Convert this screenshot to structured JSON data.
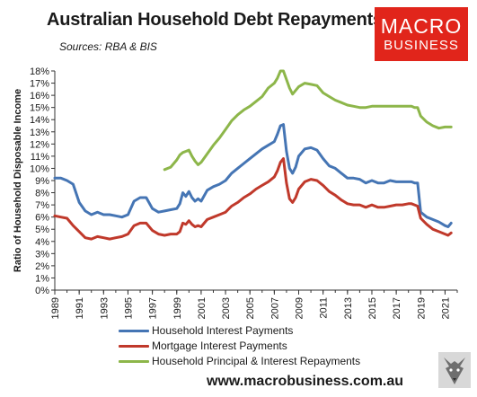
{
  "title": "Australian Household Debt Repayments",
  "subtitle": "Sources: RBA & BIS",
  "logo": {
    "line1": "MACRO",
    "line2": "BUSINESS"
  },
  "footer": {
    "website": "www.macrobusiness.com.au"
  },
  "colors": {
    "household_interest": "#4575b4",
    "mortgage_interest": "#c0392b",
    "principal_interest": "#8db64a",
    "logo_bg": "#e1251b"
  },
  "icons": {
    "logo_mark": "wolf-icon"
  },
  "chart_data": {
    "type": "line",
    "title": "Australian Household Debt Repayments",
    "ylabel": "Ratio of Household Disposable Income",
    "xlabel": "",
    "xlim": [
      1989,
      2022
    ],
    "ylim": [
      0,
      18
    ],
    "grid": false,
    "legend_position": "bottom",
    "x_ticks": [
      "1989",
      "1991",
      "1993",
      "1995",
      "1997",
      "1999",
      "2001",
      "2003",
      "2005",
      "2007",
      "2009",
      "2011",
      "2013",
      "2015",
      "2017",
      "2019",
      "2021"
    ],
    "y_ticks": [
      "0%",
      "1%",
      "2%",
      "3%",
      "4%",
      "5%",
      "6%",
      "7%",
      "8%",
      "9%",
      "10%",
      "11%",
      "12%",
      "13%",
      "14%",
      "15%",
      "16%",
      "17%",
      "18%"
    ],
    "series": [
      {
        "name": "Household Interest Payments",
        "color": "#4575b4",
        "x": [
          1989.0,
          1989.5,
          1990.0,
          1990.5,
          1991.0,
          1991.5,
          1992.0,
          1992.5,
          1993.0,
          1993.5,
          1994.0,
          1994.5,
          1995.0,
          1995.5,
          1996.0,
          1996.5,
          1997.0,
          1997.5,
          1998.0,
          1998.5,
          1999.0,
          1999.25,
          1999.5,
          1999.75,
          2000.0,
          2000.25,
          2000.5,
          2000.75,
          2001.0,
          2001.5,
          2002.0,
          2002.5,
          2003.0,
          2003.5,
          2004.0,
          2004.5,
          2005.0,
          2005.5,
          2006.0,
          2006.5,
          2007.0,
          2007.25,
          2007.5,
          2007.75,
          2008.0,
          2008.25,
          2008.5,
          2008.75,
          2009.0,
          2009.5,
          2010.0,
          2010.5,
          2011.0,
          2011.5,
          2012.0,
          2012.5,
          2013.0,
          2013.5,
          2014.0,
          2014.5,
          2015.0,
          2015.5,
          2016.0,
          2016.5,
          2017.0,
          2017.5,
          2018.0,
          2018.25,
          2018.5,
          2018.75,
          2019.0,
          2019.5,
          2020.0,
          2020.5,
          2021.0,
          2021.25,
          2021.5
        ],
        "values": [
          9.2,
          9.2,
          9.0,
          8.7,
          7.2,
          6.5,
          6.2,
          6.4,
          6.2,
          6.2,
          6.1,
          6.0,
          6.2,
          7.3,
          7.6,
          7.6,
          6.7,
          6.4,
          6.5,
          6.6,
          6.7,
          7.1,
          8.0,
          7.7,
          8.1,
          7.6,
          7.3,
          7.5,
          7.3,
          8.2,
          8.5,
          8.7,
          9.0,
          9.6,
          10.0,
          10.4,
          10.8,
          11.2,
          11.6,
          11.9,
          12.2,
          12.8,
          13.5,
          13.6,
          11.4,
          10.0,
          9.6,
          10.1,
          11.0,
          11.6,
          11.7,
          11.5,
          10.8,
          10.2,
          10.0,
          9.6,
          9.2,
          9.2,
          9.1,
          8.8,
          9.0,
          8.8,
          8.8,
          9.0,
          8.9,
          8.9,
          8.9,
          8.9,
          8.8,
          8.8,
          6.4,
          6.0,
          5.8,
          5.6,
          5.3,
          5.2,
          5.5
        ]
      },
      {
        "name": "Mortgage Interest Payments",
        "color": "#c0392b",
        "x": [
          1989.0,
          1989.5,
          1990.0,
          1990.5,
          1991.0,
          1991.5,
          1992.0,
          1992.5,
          1993.0,
          1993.5,
          1994.0,
          1994.5,
          1995.0,
          1995.5,
          1996.0,
          1996.5,
          1997.0,
          1997.5,
          1998.0,
          1998.5,
          1999.0,
          1999.25,
          1999.5,
          1999.75,
          2000.0,
          2000.25,
          2000.5,
          2000.75,
          2001.0,
          2001.5,
          2002.0,
          2002.5,
          2003.0,
          2003.5,
          2004.0,
          2004.5,
          2005.0,
          2005.5,
          2006.0,
          2006.5,
          2007.0,
          2007.25,
          2007.5,
          2007.75,
          2008.0,
          2008.25,
          2008.5,
          2008.75,
          2009.0,
          2009.5,
          2010.0,
          2010.5,
          2011.0,
          2011.5,
          2012.0,
          2012.5,
          2013.0,
          2013.5,
          2014.0,
          2014.5,
          2015.0,
          2015.5,
          2016.0,
          2016.5,
          2017.0,
          2017.5,
          2018.0,
          2018.25,
          2018.5,
          2018.75,
          2019.0,
          2019.5,
          2020.0,
          2020.5,
          2021.0,
          2021.25,
          2021.5
        ],
        "values": [
          6.1,
          6.0,
          5.9,
          5.3,
          4.8,
          4.3,
          4.2,
          4.4,
          4.3,
          4.2,
          4.3,
          4.4,
          4.6,
          5.3,
          5.5,
          5.5,
          4.9,
          4.6,
          4.5,
          4.6,
          4.6,
          4.8,
          5.5,
          5.4,
          5.7,
          5.4,
          5.2,
          5.3,
          5.2,
          5.8,
          6.0,
          6.2,
          6.4,
          6.9,
          7.2,
          7.6,
          7.9,
          8.3,
          8.6,
          8.9,
          9.3,
          9.8,
          10.5,
          10.8,
          8.8,
          7.5,
          7.2,
          7.6,
          8.3,
          8.9,
          9.1,
          9.0,
          8.6,
          8.1,
          7.8,
          7.4,
          7.1,
          7.0,
          7.0,
          6.8,
          7.0,
          6.8,
          6.8,
          6.9,
          7.0,
          7.0,
          7.1,
          7.1,
          7.0,
          6.9,
          5.9,
          5.4,
          5.0,
          4.8,
          4.6,
          4.5,
          4.7
        ]
      },
      {
        "name": "Household Principal & Interest Repayments",
        "color": "#8db64a",
        "x": [
          1998.0,
          1998.5,
          1999.0,
          1999.25,
          1999.5,
          1999.75,
          2000.0,
          2000.25,
          2000.5,
          2000.75,
          2001.0,
          2001.5,
          2002.0,
          2002.5,
          2003.0,
          2003.5,
          2004.0,
          2004.5,
          2005.0,
          2005.5,
          2006.0,
          2006.5,
          2007.0,
          2007.25,
          2007.5,
          2007.75,
          2008.0,
          2008.25,
          2008.5,
          2008.75,
          2009.0,
          2009.5,
          2010.0,
          2010.5,
          2011.0,
          2011.5,
          2012.0,
          2012.5,
          2013.0,
          2013.5,
          2014.0,
          2014.5,
          2015.0,
          2015.5,
          2016.0,
          2016.5,
          2017.0,
          2017.5,
          2018.0,
          2018.25,
          2018.5,
          2018.75,
          2019.0,
          2019.5,
          2020.0,
          2020.5,
          2021.0,
          2021.25,
          2021.5
        ],
        "values": [
          9.9,
          10.1,
          10.7,
          11.1,
          11.3,
          11.4,
          11.5,
          11.0,
          10.6,
          10.3,
          10.5,
          11.2,
          11.9,
          12.5,
          13.2,
          13.9,
          14.4,
          14.8,
          15.1,
          15.5,
          15.9,
          16.6,
          17.0,
          17.4,
          18.0,
          18.0,
          17.3,
          16.6,
          16.1,
          16.4,
          16.7,
          17.0,
          16.9,
          16.8,
          16.2,
          15.9,
          15.6,
          15.4,
          15.2,
          15.1,
          15.0,
          15.0,
          15.1,
          15.1,
          15.1,
          15.1,
          15.1,
          15.1,
          15.1,
          15.1,
          15.0,
          15.0,
          14.3,
          13.8,
          13.5,
          13.3,
          13.4,
          13.4,
          13.4
        ]
      }
    ]
  }
}
